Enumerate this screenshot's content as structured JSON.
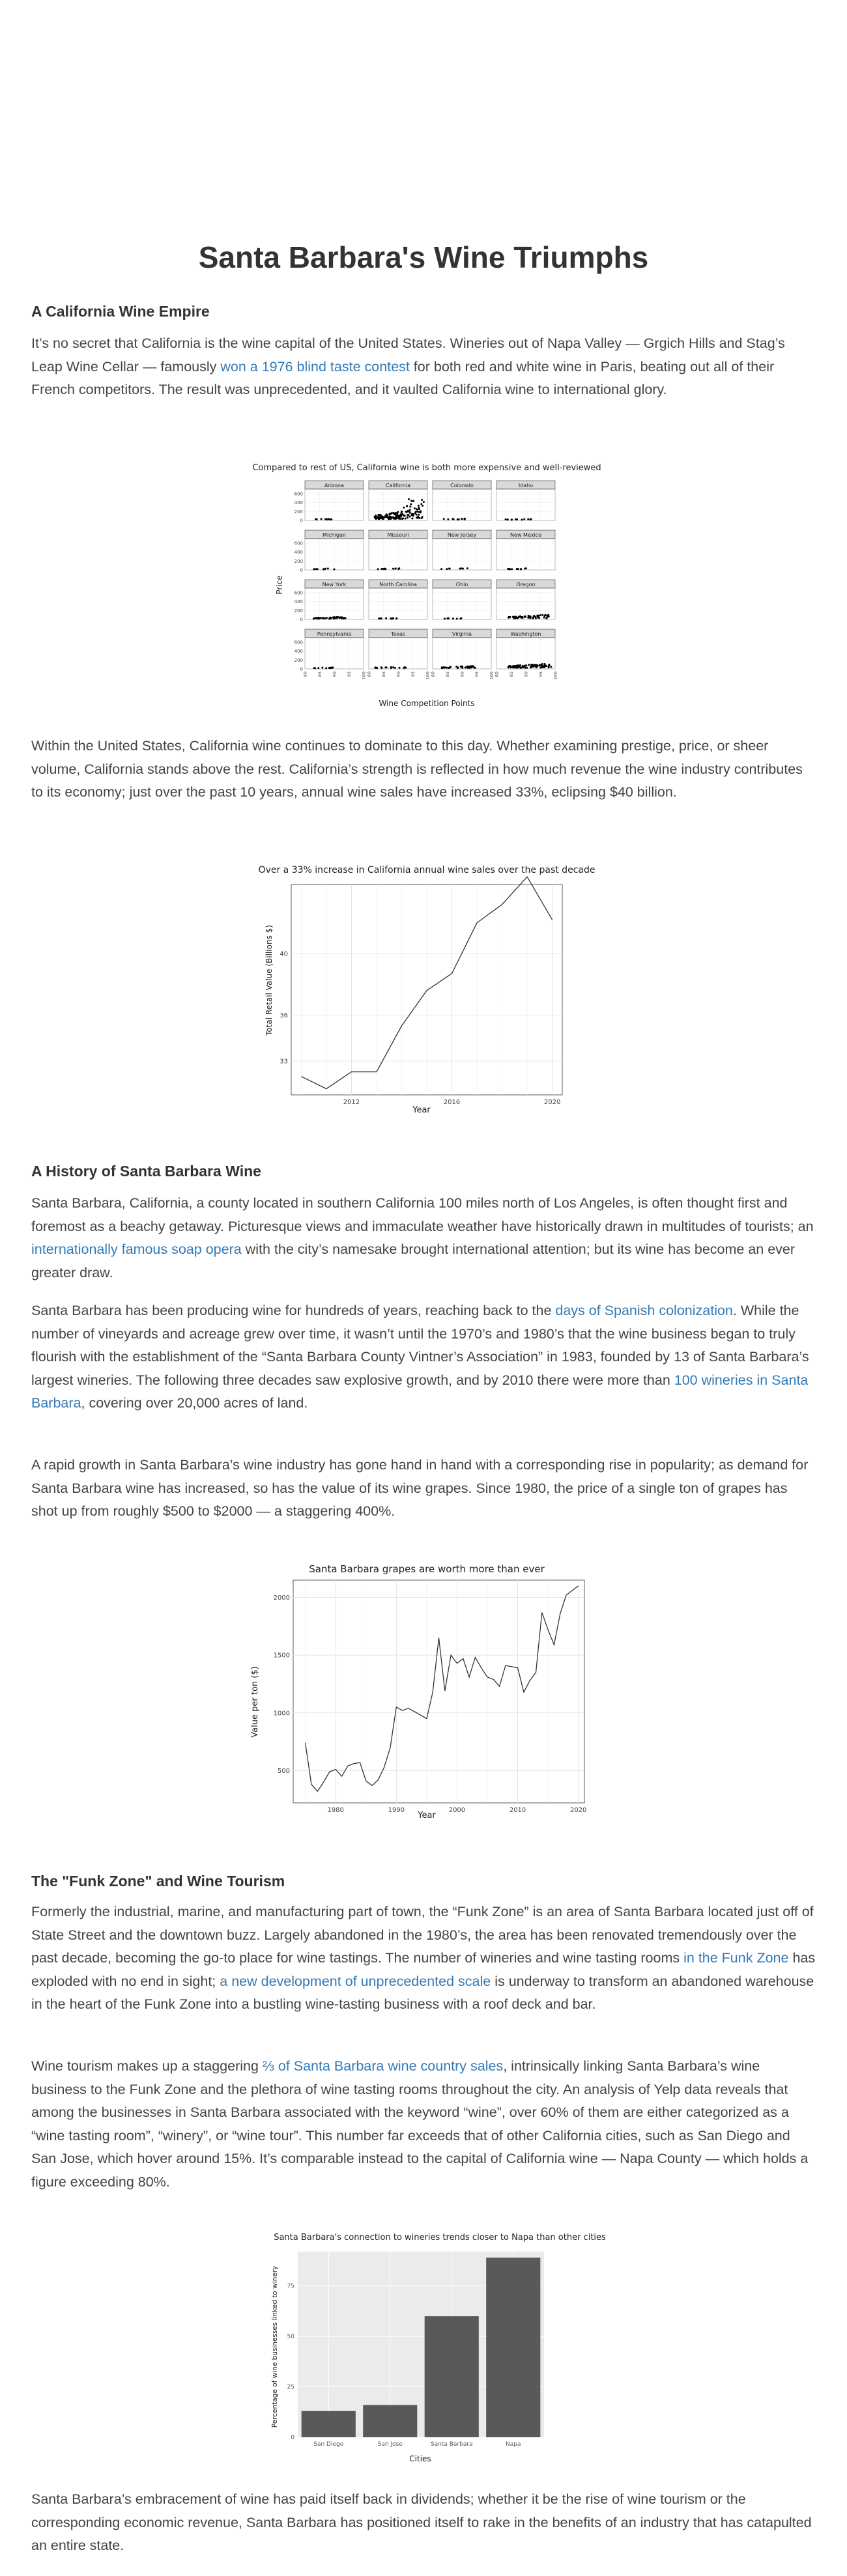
{
  "title": "Santa Barbara's Wine Triumphs",
  "sections": {
    "s1": "A California Wine Empire",
    "s2": "A History of Santa Barbara Wine",
    "s3": "The \"Funk Zone\" and Wine Tourism"
  },
  "paragraphs": {
    "p1": {
      "a": "It’s no secret that California is the wine capital of the United States. Wineries out of Napa Valley — Grgich Hills and Stag’s Leap Wine Cellar — famously ",
      "link1": "won a 1976 blind taste contest",
      "b": " for both red and white wine in Paris, beating out all of their French competitors. The result was unprecedented, and it vaulted California wine to international glory."
    },
    "p2": "Within the United States, California wine continues to dominate to this day. Whether examining prestige, price, or sheer volume, California stands above the rest. California’s strength is reflected in how much revenue the wine industry contributes to its economy; just over the past 10 years, annual wine sales have increased 33%, eclipsing $40 billion.",
    "p3": {
      "a": "Santa Barbara, California, a county located in southern California 100 miles north of Los Angeles, is often thought first and foremost as a beachy getaway. Picturesque views and immaculate weather have historically drawn in multitudes of tourists; an ",
      "link1": "internationally famous soap opera",
      "b": " with the city’s namesake brought international attention; but its wine has become an ever greater draw."
    },
    "p4": {
      "a": "Santa Barbara has been producing wine for hundreds of years, reaching back to the ",
      "link1": "days of Spanish colonization",
      "b": ". While the number of vineyards and acreage grew over time, it wasn’t until the 1970’s and 1980’s that the wine business began to truly flourish with the establishment of the “Santa Barbara County Vintner’s Association” in 1983, founded by 13 of Santa Barbara’s largest wineries. The following three decades saw explosive growth, and by 2010 there were more than ",
      "link2": "100 wineries in Santa Barbara",
      "c": ", covering over 20,000 acres of land."
    },
    "p5": "A rapid growth in Santa Barbara’s wine industry has gone hand in hand with a corresponding rise in popularity; as demand for Santa Barbara wine has increased, so has the value of its wine grapes. Since 1980, the price of a single ton of grapes has shot up from roughly $500 to $2000 — a staggering 400%.",
    "p6": {
      "a": "Formerly the industrial, marine, and manufacturing part of town, the “Funk Zone” is an area of Santa Barbara located just off of State Street and the downtown buzz. Largely abandoned in the 1980’s, the area has been renovated tremendously over the past decade, becoming the go-to place for wine tastings. The number of wineries and wine tasting rooms ",
      "link1": "in the Funk Zone",
      "b": " has exploded with no end in sight; ",
      "link2": "a new development of unprecedented scale",
      "c": " is underway to transform an abandoned warehouse in the heart of the Funk Zone into a bustling wine-tasting business with a roof deck and bar."
    },
    "p7": {
      "a": "Wine tourism makes up a staggering ",
      "link1": "⅔ of Santa Barbara wine country sales",
      "b": ", intrinsically linking Santa Barbara’s wine business to the Funk Zone and the plethora of wine tasting rooms throughout the city. An analysis of Yelp data reveals that among the businesses in Santa Barbara associated with the keyword “wine”, over 60% of them are either categorized as a “wine tasting room”, “winery”, or “wine tour”. This number far exceeds that of other California cities, such as San Diego and San Jose, which hover around 15%. It’s comparable instead to the capital of California wine — Napa County — which holds a figure exceeding 80%."
    },
    "p8": "Santa Barbara’s embracement of wine has paid itself back in dividends; whether it be the rise of wine tourism or the corresponding economic revenue, Santa Barbara has positioned itself to rake in the benefits of an industry that has catapulted an entire state."
  },
  "chart_data": [
    {
      "type": "scatter",
      "title": "Compared to rest of US, California wine is both more expensive and well-reviewed",
      "xlabel": "Wine Competition Points",
      "ylabel": "Price",
      "x_ticks": [
        "80",
        "85",
        "90",
        "95",
        "100"
      ],
      "y_ticks": [
        "0",
        "200",
        "400",
        "600"
      ],
      "xlim": [
        80,
        100
      ],
      "ylim": [
        0,
        700
      ],
      "panels": [
        "Arizona",
        "California",
        "Colorado",
        "Idaho",
        "Michigan",
        "Missouri",
        "New Jersey",
        "New Mexico",
        "New York",
        "North Carolina",
        "Ohio",
        "Oregon",
        "Pennsylvania",
        "Texas",
        "Virginia",
        "Washington"
      ]
    },
    {
      "type": "line",
      "title": "Over a 33% increase in California annual wine sales over the past decade",
      "xlabel": "Year",
      "ylabel": "Total Retail Value (Billions $)",
      "x_ticks": [
        "2012",
        "2016",
        "2020"
      ],
      "y_ticks": [
        "33",
        "36",
        "40"
      ],
      "xlim": [
        2009.6,
        2020.4
      ],
      "ylim": [
        30.8,
        44.5
      ],
      "x": [
        2010,
        2011,
        2012,
        2013,
        2014,
        2015,
        2016,
        2017,
        2018,
        2019,
        2020
      ],
      "y": [
        32.0,
        31.2,
        32.3,
        32.3,
        35.3,
        37.6,
        38.7,
        42.0,
        43.2,
        45.0,
        42.2
      ]
    },
    {
      "type": "line",
      "title": "Santa Barbara grapes are worth more than ever",
      "xlabel": "Year",
      "ylabel": "Value per ton ($)",
      "x_ticks": [
        "1980",
        "1990",
        "2000",
        "2010",
        "2020"
      ],
      "y_ticks": [
        "500",
        "1000",
        "1500",
        "2000"
      ],
      "xlim": [
        1973,
        2021
      ],
      "ylim": [
        220,
        2150
      ],
      "x": [
        1975,
        1976,
        1977,
        1978,
        1979,
        1980,
        1981,
        1982,
        1983,
        1984,
        1985,
        1986,
        1987,
        1988,
        1989,
        1990,
        1991,
        1992,
        1993,
        1994,
        1995,
        1996,
        1997,
        1998,
        1999,
        2000,
        2001,
        2002,
        2003,
        2004,
        2005,
        2006,
        2007,
        2008,
        2009,
        2010,
        2011,
        2012,
        2013,
        2014,
        2015,
        2016,
        2017,
        2018,
        2019,
        2020
      ],
      "y": [
        740,
        380,
        320,
        400,
        490,
        510,
        450,
        540,
        560,
        570,
        410,
        370,
        420,
        530,
        700,
        1050,
        1020,
        1040,
        1010,
        980,
        950,
        1180,
        1650,
        1190,
        1500,
        1430,
        1470,
        1310,
        1480,
        1390,
        1310,
        1290,
        1230,
        1410,
        1400,
        1390,
        1180,
        1280,
        1350,
        1870,
        1720,
        1590,
        1860,
        2020,
        2060,
        2100
      ]
    },
    {
      "type": "bar",
      "title": "Santa Barbara's connection to wineries trends closer to Napa than other cities",
      "xlabel": "Cities",
      "ylabel": "Percentage of wine businesses linked to winery",
      "categories": [
        "San Diego",
        "San Jose",
        "Santa Barbara",
        "Napa"
      ],
      "values": [
        13,
        16,
        60,
        89
      ],
      "y_ticks": [
        "0",
        "25",
        "50",
        "75"
      ],
      "ylim": [
        0,
        92
      ]
    }
  ]
}
